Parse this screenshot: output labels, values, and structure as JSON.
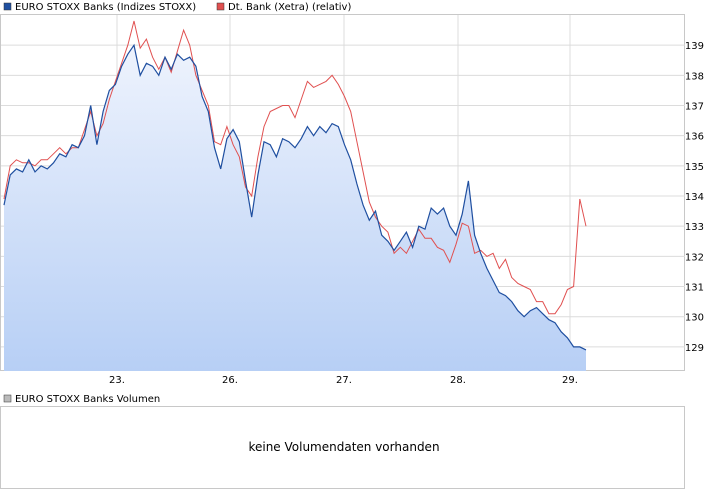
{
  "chart_data": {
    "type": "line",
    "series": [
      {
        "name": "EURO STOXX Banks (Indizes STOXX)",
        "color": "#1f4fa0",
        "fill": "area-gradient-blue",
        "values": [
          133.7,
          134.7,
          134.9,
          134.8,
          135.2,
          134.8,
          135.0,
          134.9,
          135.1,
          135.4,
          135.3,
          135.7,
          135.6,
          136.0,
          137.0,
          135.7,
          136.8,
          137.5,
          137.7,
          138.3,
          138.7,
          139.0,
          138.0,
          138.4,
          138.3,
          138.0,
          138.6,
          138.2,
          138.7,
          138.5,
          138.6,
          138.3,
          137.3,
          136.8,
          135.6,
          134.9,
          135.9,
          136.2,
          135.8,
          134.5,
          133.3,
          134.7,
          135.8,
          135.7,
          135.3,
          135.9,
          135.8,
          135.6,
          135.9,
          136.3,
          136.0,
          136.3,
          136.1,
          136.4,
          136.3,
          135.7,
          135.2,
          134.4,
          133.7,
          133.2,
          133.5,
          132.7,
          132.5,
          132.2,
          132.5,
          132.8,
          132.3,
          133.0,
          132.9,
          133.6,
          133.4,
          133.6,
          133.0,
          132.7,
          133.4,
          134.5,
          132.7,
          132.1,
          131.6,
          131.2,
          130.8,
          130.7,
          130.5,
          130.2,
          130.0,
          130.2,
          130.3,
          130.1,
          129.9,
          129.8,
          129.5,
          129.3,
          129.0,
          129.0,
          128.9
        ]
      },
      {
        "name": "Dt. Bank (Xetra) (relativ)",
        "color": "#e05050",
        "values": [
          133.9,
          135.0,
          135.2,
          135.1,
          135.1,
          135.0,
          135.2,
          135.2,
          135.4,
          135.6,
          135.4,
          135.6,
          135.6,
          136.2,
          136.8,
          136.0,
          136.4,
          137.2,
          137.8,
          138.4,
          139.0,
          139.8,
          138.9,
          139.2,
          138.6,
          138.2,
          138.6,
          138.1,
          138.8,
          139.5,
          139.0,
          138.0,
          137.5,
          137.0,
          135.8,
          135.7,
          136.3,
          135.7,
          135.3,
          134.3,
          134.0,
          135.3,
          136.3,
          136.8,
          136.9,
          137.0,
          137.0,
          136.6,
          137.2,
          137.8,
          137.6,
          137.7,
          137.8,
          138.0,
          137.7,
          137.3,
          136.8,
          135.8,
          134.8,
          133.8,
          133.3,
          133.0,
          132.8,
          132.1,
          132.3,
          132.1,
          132.5,
          132.9,
          132.6,
          132.6,
          132.3,
          132.2,
          131.8,
          132.4,
          133.1,
          133.0,
          132.1,
          132.2,
          132.0,
          132.1,
          131.6,
          131.9,
          131.3,
          131.1,
          131.0,
          130.9,
          130.5,
          130.5,
          130.1,
          130.1,
          130.4,
          130.9,
          131.0,
          133.9,
          133.0
        ]
      }
    ],
    "x_ticks": [
      "23.",
      "26.",
      "27.",
      "28.",
      "29."
    ],
    "y_ticks": [
      "129",
      "130",
      "131",
      "132",
      "133",
      "134",
      "135",
      "136",
      "137",
      "138",
      "139"
    ],
    "ylim": [
      128.2,
      140.0
    ],
    "grid": true,
    "legend_placement": "top-left"
  },
  "volume_panel": {
    "legend": "EURO STOXX Banks Volumen",
    "message": "keine Volumendaten vorhanden"
  }
}
